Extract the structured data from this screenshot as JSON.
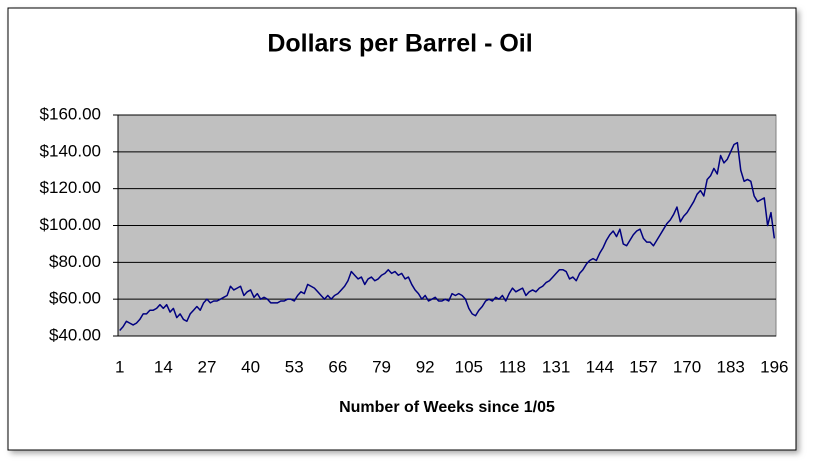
{
  "chart_data": {
    "type": "line",
    "title": "Dollars per Barrel - Oil",
    "xlabel": "Number of Weeks since 1/05",
    "categories": [
      1,
      null,
      null,
      null,
      null,
      null,
      null,
      null,
      null,
      null,
      null,
      null,
      null,
      14,
      null,
      null,
      null,
      null,
      null,
      null,
      null,
      null,
      null,
      null,
      null,
      null,
      27,
      null,
      null,
      null,
      null,
      null,
      null,
      null,
      null,
      null,
      null,
      null,
      null,
      40,
      null,
      null,
      null,
      null,
      null,
      null,
      null,
      null,
      null,
      null,
      null,
      null,
      53,
      null,
      null,
      null,
      null,
      null,
      null,
      null,
      null,
      null,
      null,
      null,
      null,
      66,
      null,
      null,
      null,
      null,
      null,
      null,
      null,
      null,
      null,
      null,
      null,
      null,
      79,
      null,
      null,
      null,
      null,
      null,
      null,
      null,
      null,
      null,
      null,
      null,
      null,
      92,
      null,
      null,
      null,
      null,
      null,
      null,
      null,
      null,
      null,
      null,
      null,
      null,
      105,
      null,
      null,
      null,
      null,
      null,
      null,
      null,
      null,
      null,
      null,
      null,
      null,
      118,
      null,
      null,
      null,
      null,
      null,
      null,
      null,
      null,
      null,
      null,
      null,
      null,
      131,
      null,
      null,
      null,
      null,
      null,
      null,
      null,
      null,
      null,
      null,
      null,
      null,
      144,
      null,
      null,
      null,
      null,
      null,
      null,
      null,
      null,
      null,
      null,
      null,
      null,
      157,
      null,
      null,
      null,
      null,
      null,
      null,
      null,
      null,
      null,
      null,
      null,
      null,
      170,
      null,
      null,
      null,
      null,
      null,
      null,
      null,
      null,
      null,
      null,
      null,
      null,
      183,
      null,
      null,
      null,
      null,
      null,
      null,
      null,
      null,
      null,
      null,
      null,
      null,
      196
    ],
    "series": [
      {
        "name": "Oil",
        "color": "#000080",
        "values": [
          43,
          45,
          48,
          47,
          46,
          47,
          49,
          52,
          52,
          54,
          54,
          55,
          57,
          55,
          57,
          53,
          55,
          50,
          52,
          49,
          48,
          52,
          54,
          56,
          54,
          58,
          60,
          58,
          59,
          59,
          60,
          61,
          62,
          67,
          65,
          66,
          67,
          62,
          64,
          65,
          61,
          63,
          60,
          61,
          60,
          58,
          58,
          58,
          59,
          59,
          60,
          60,
          59,
          62,
          64,
          63,
          68,
          67,
          66,
          64,
          62,
          60,
          62,
          60,
          62,
          63,
          65,
          67,
          70,
          75,
          73,
          71,
          72,
          68,
          71,
          72,
          70,
          71,
          73,
          74,
          76,
          74,
          75,
          73,
          74,
          71,
          72,
          68,
          65,
          63,
          60,
          62,
          59,
          60,
          61,
          59,
          59,
          60,
          59,
          63,
          62,
          63,
          62,
          60,
          55,
          52,
          51,
          54,
          56,
          59,
          60,
          59,
          61,
          60,
          62,
          59,
          63,
          66,
          64,
          65,
          66,
          62,
          64,
          65,
          64,
          66,
          67,
          69,
          70,
          72,
          74,
          76,
          76,
          75,
          71,
          72,
          70,
          74,
          76,
          79,
          81,
          82,
          81,
          85,
          88,
          92,
          95,
          97,
          94,
          98,
          90,
          89,
          92,
          95,
          97,
          98,
          93,
          91,
          91,
          89,
          92,
          95,
          98,
          101,
          103,
          106,
          110,
          102,
          105,
          107,
          110,
          113,
          117,
          119,
          116,
          125,
          127,
          131,
          128,
          138,
          134,
          136,
          140,
          144,
          145,
          130,
          124,
          125,
          124,
          116,
          113,
          114,
          115,
          100,
          107,
          93
        ]
      }
    ],
    "ylim": [
      40,
      160
    ],
    "yticks": [
      {
        "value": 40,
        "label": "$40.00"
      },
      {
        "value": 60,
        "label": "$60.00"
      },
      {
        "value": 80,
        "label": "$80.00"
      },
      {
        "value": 100,
        "label": "$100.00"
      },
      {
        "value": 120,
        "label": "$120.00"
      },
      {
        "value": 140,
        "label": "$140.00"
      },
      {
        "value": 160,
        "label": "$160.00"
      }
    ],
    "grid": true,
    "plot_background": "#c0c0c0"
  }
}
